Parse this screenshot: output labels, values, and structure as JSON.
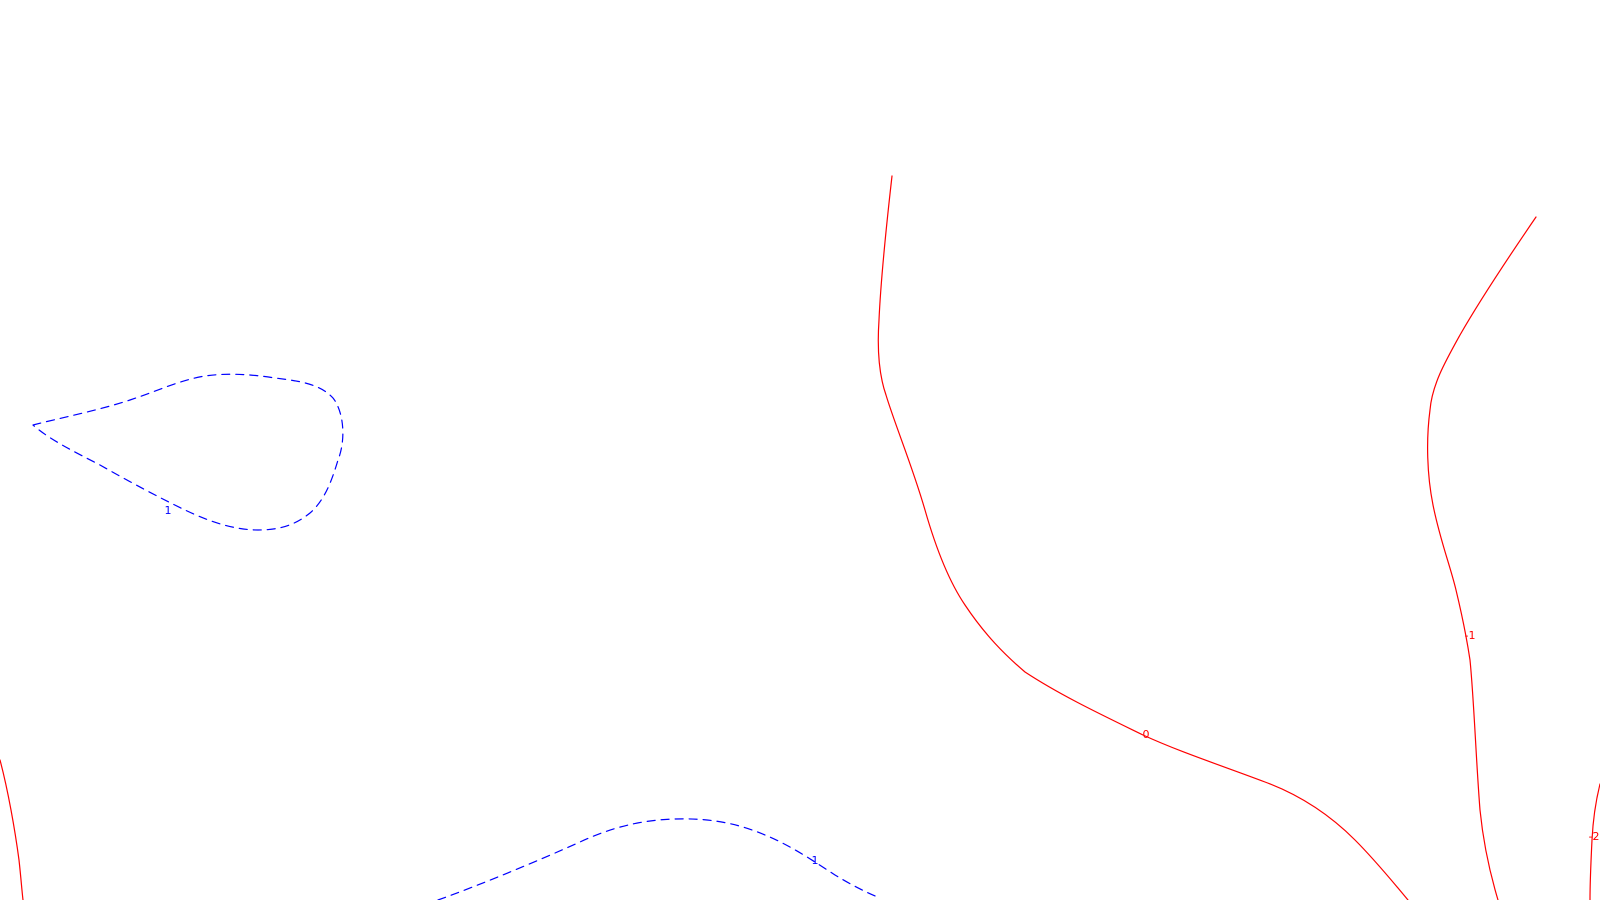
{
  "map": {
    "colors": {
      "positive": "#0000ff",
      "negative": "#ff0000",
      "background": "#ffffff"
    },
    "contours": [
      {
        "level": 1,
        "label": "1",
        "sign": "positive",
        "style": "dashed"
      },
      {
        "level": 1,
        "label": "1",
        "sign": "positive",
        "style": "dashed"
      },
      {
        "level": 0,
        "label": "0",
        "sign": "negative",
        "style": "solid"
      },
      {
        "level": -1,
        "label": "-1",
        "sign": "negative",
        "style": "solid"
      },
      {
        "level": -2,
        "label": "-2",
        "sign": "negative",
        "style": "solid"
      },
      {
        "level": -2,
        "label": "",
        "sign": "negative",
        "style": "solid"
      }
    ]
  }
}
